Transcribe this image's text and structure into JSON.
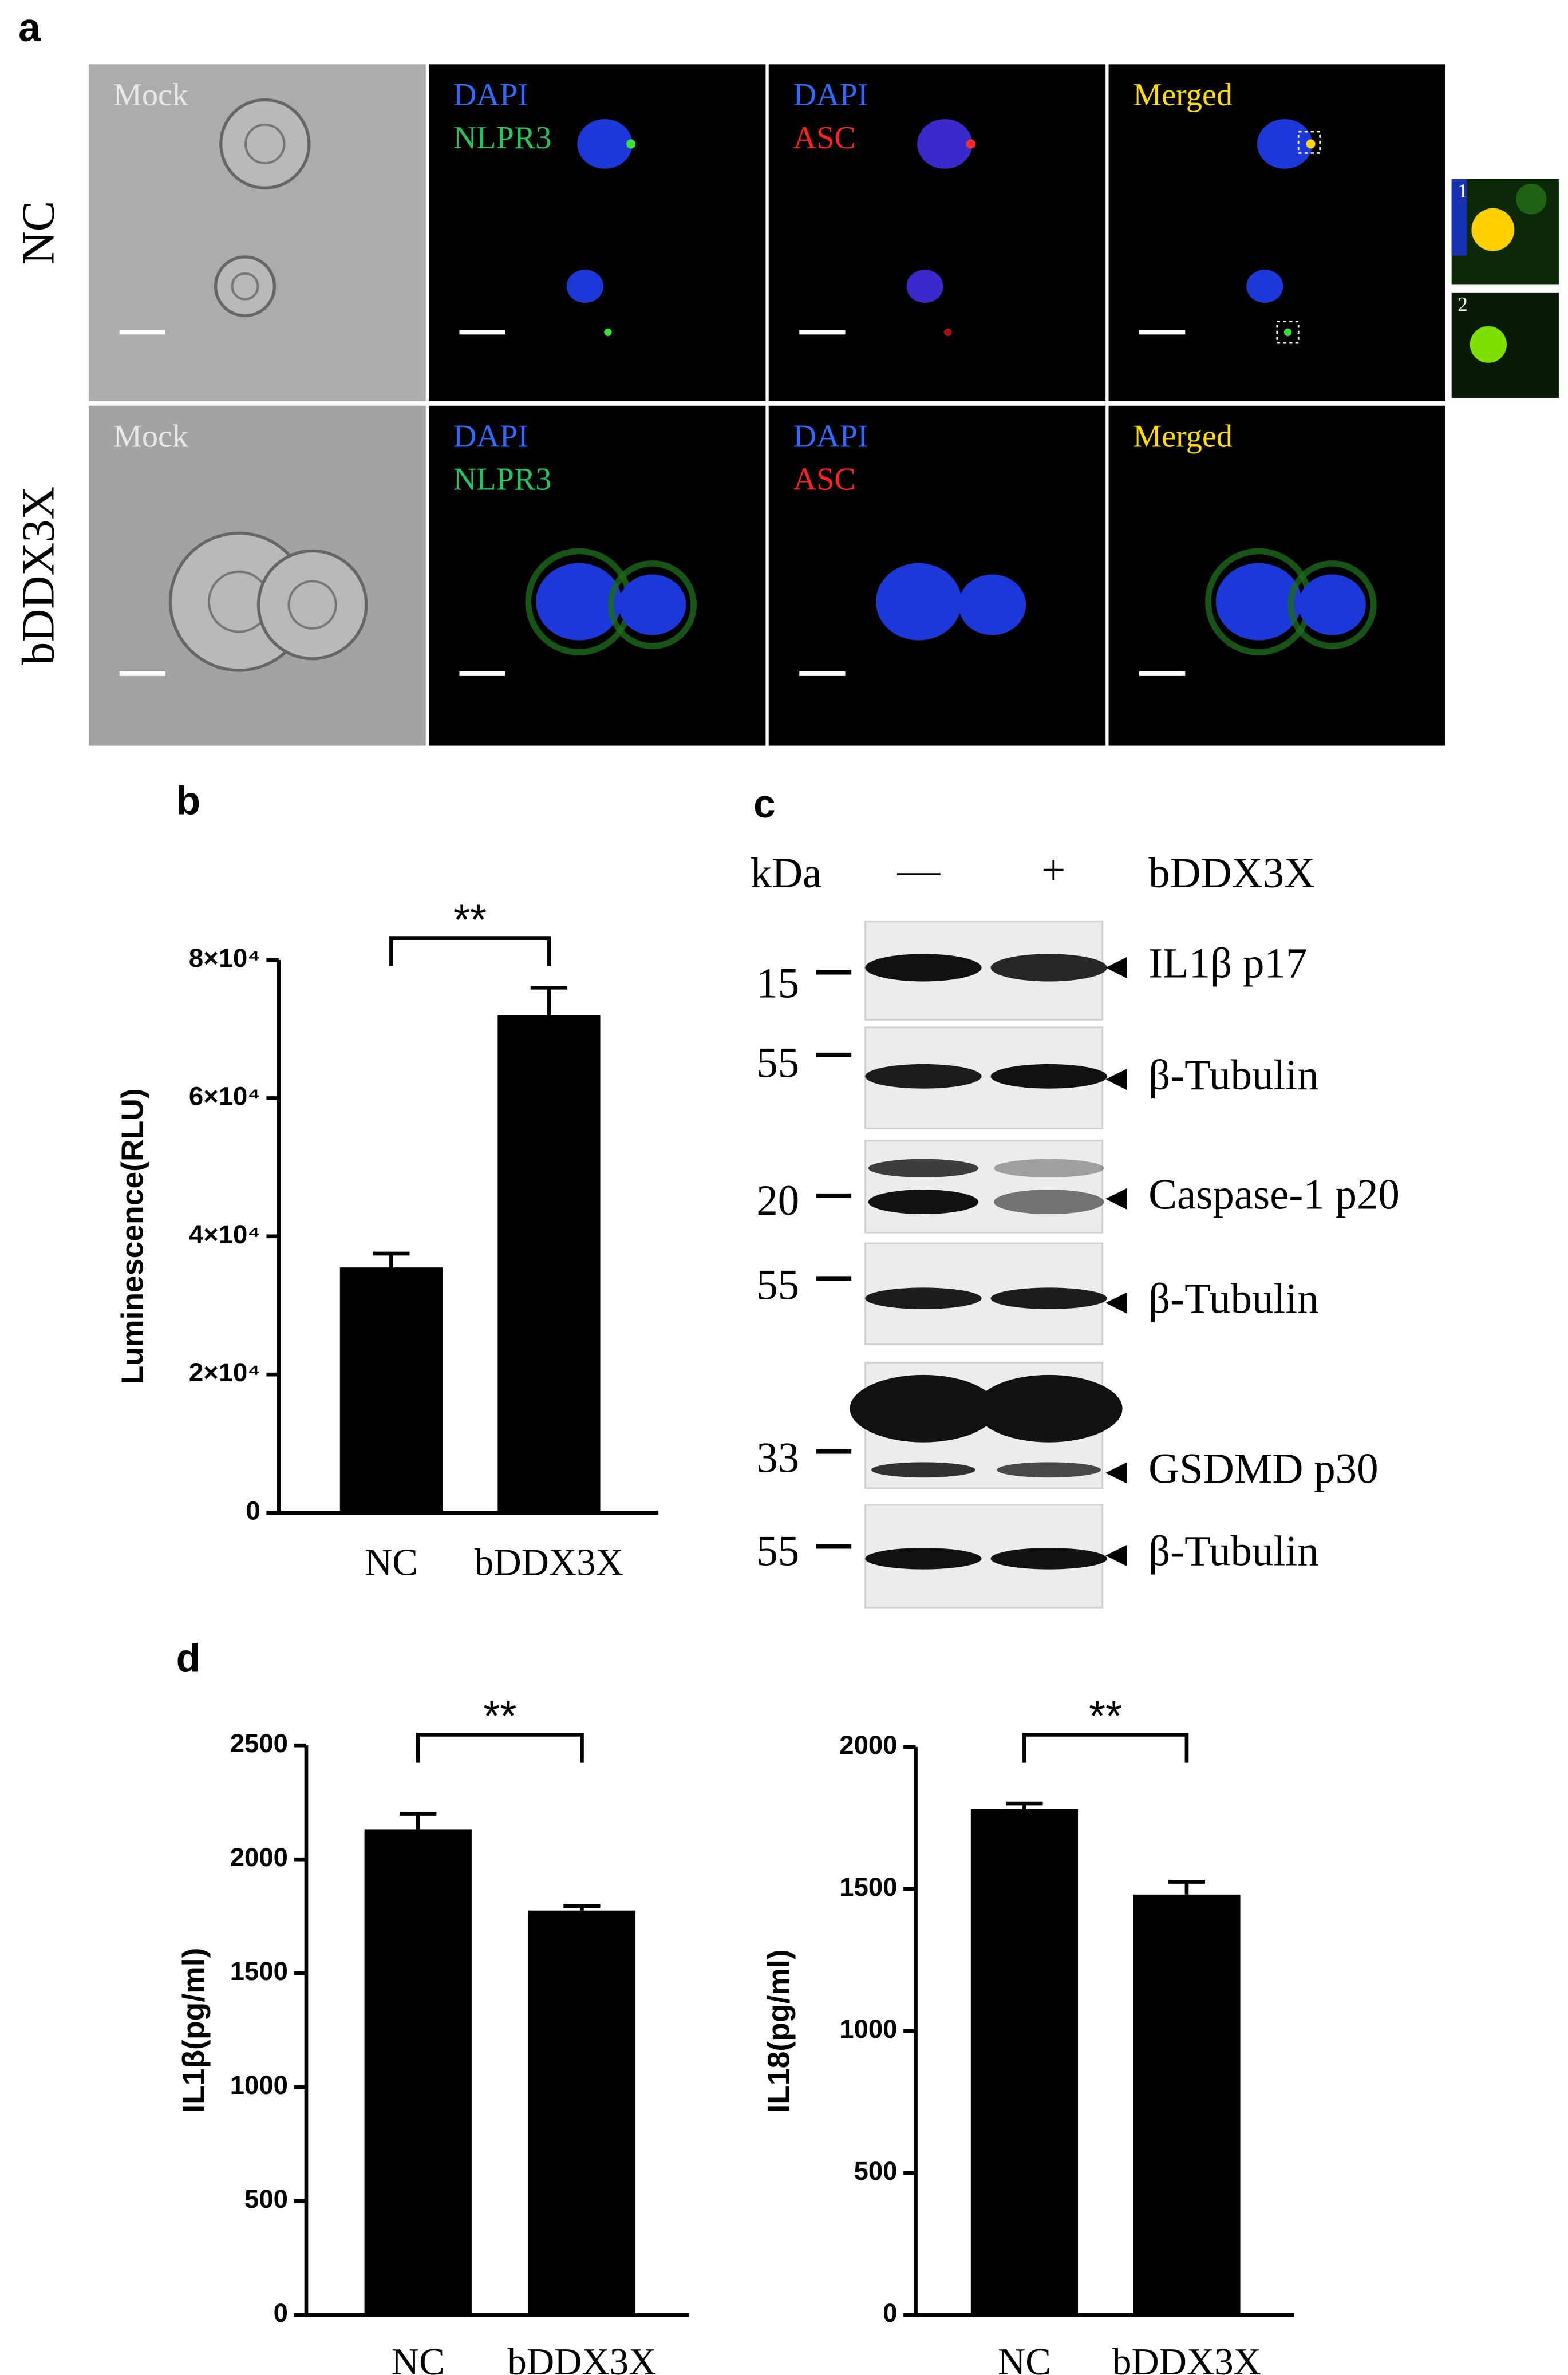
{
  "panel_a": {
    "label": "a",
    "rows": [
      "NC",
      "bDDX3X"
    ],
    "tiles": [
      [
        "Mock"
      ],
      [
        "DAPI",
        "NLPR3"
      ],
      [
        "DAPI",
        "ASC"
      ],
      [
        "Merged"
      ]
    ],
    "insets": [
      "1",
      "2"
    ]
  },
  "panel_c": {
    "label": "c",
    "unit": "kDa",
    "lanes": [
      "—",
      "+"
    ],
    "treatment": "bDDX3X",
    "markers": [
      15,
      55,
      20,
      55,
      33,
      55
    ],
    "bands": [
      "IL1β p17",
      "β-Tubulin",
      "Caspase-1  p20",
      "β-Tubulin",
      "GSDMD p30",
      "β-Tubulin"
    ]
  },
  "chart_data": [
    {
      "type": "bar",
      "panel_label": "b",
      "categories": [
        "NC",
        "bDDX3X"
      ],
      "values": [
        35500,
        72000
      ],
      "errors": [
        2000,
        4000
      ],
      "color": "#000000",
      "ylabel": "Luminescence(RLU)",
      "ylim": [
        0,
        80000
      ],
      "yticks": [
        0,
        {
          "value": 20000,
          "label": "2×10⁴"
        },
        {
          "value": 40000,
          "label": "4×10⁴"
        },
        {
          "value": 60000,
          "label": "6×10⁴"
        },
        {
          "value": 80000,
          "label": "8×10⁴"
        }
      ],
      "annotation": "**"
    },
    {
      "type": "bar",
      "panel_label": "d",
      "categories": [
        "NC",
        "bDDX3X"
      ],
      "values": [
        2130,
        1775
      ],
      "errors": [
        70,
        20
      ],
      "color": "#000000",
      "ylabel": "IL1β(pg/ml)",
      "ylim": [
        0,
        2500
      ],
      "yticks": [
        0,
        500,
        1000,
        1500,
        2000,
        2500
      ],
      "annotation": "**"
    },
    {
      "type": "bar",
      "categories": [
        "NC",
        "bDDX3X"
      ],
      "values": [
        1780,
        1480
      ],
      "errors": [
        20,
        45
      ],
      "color": "#000000",
      "ylabel": "IL18(pg/ml)",
      "ylim": [
        0,
        2000
      ],
      "yticks": [
        0,
        500,
        1000,
        1500,
        2000
      ],
      "annotation": "**"
    }
  ]
}
